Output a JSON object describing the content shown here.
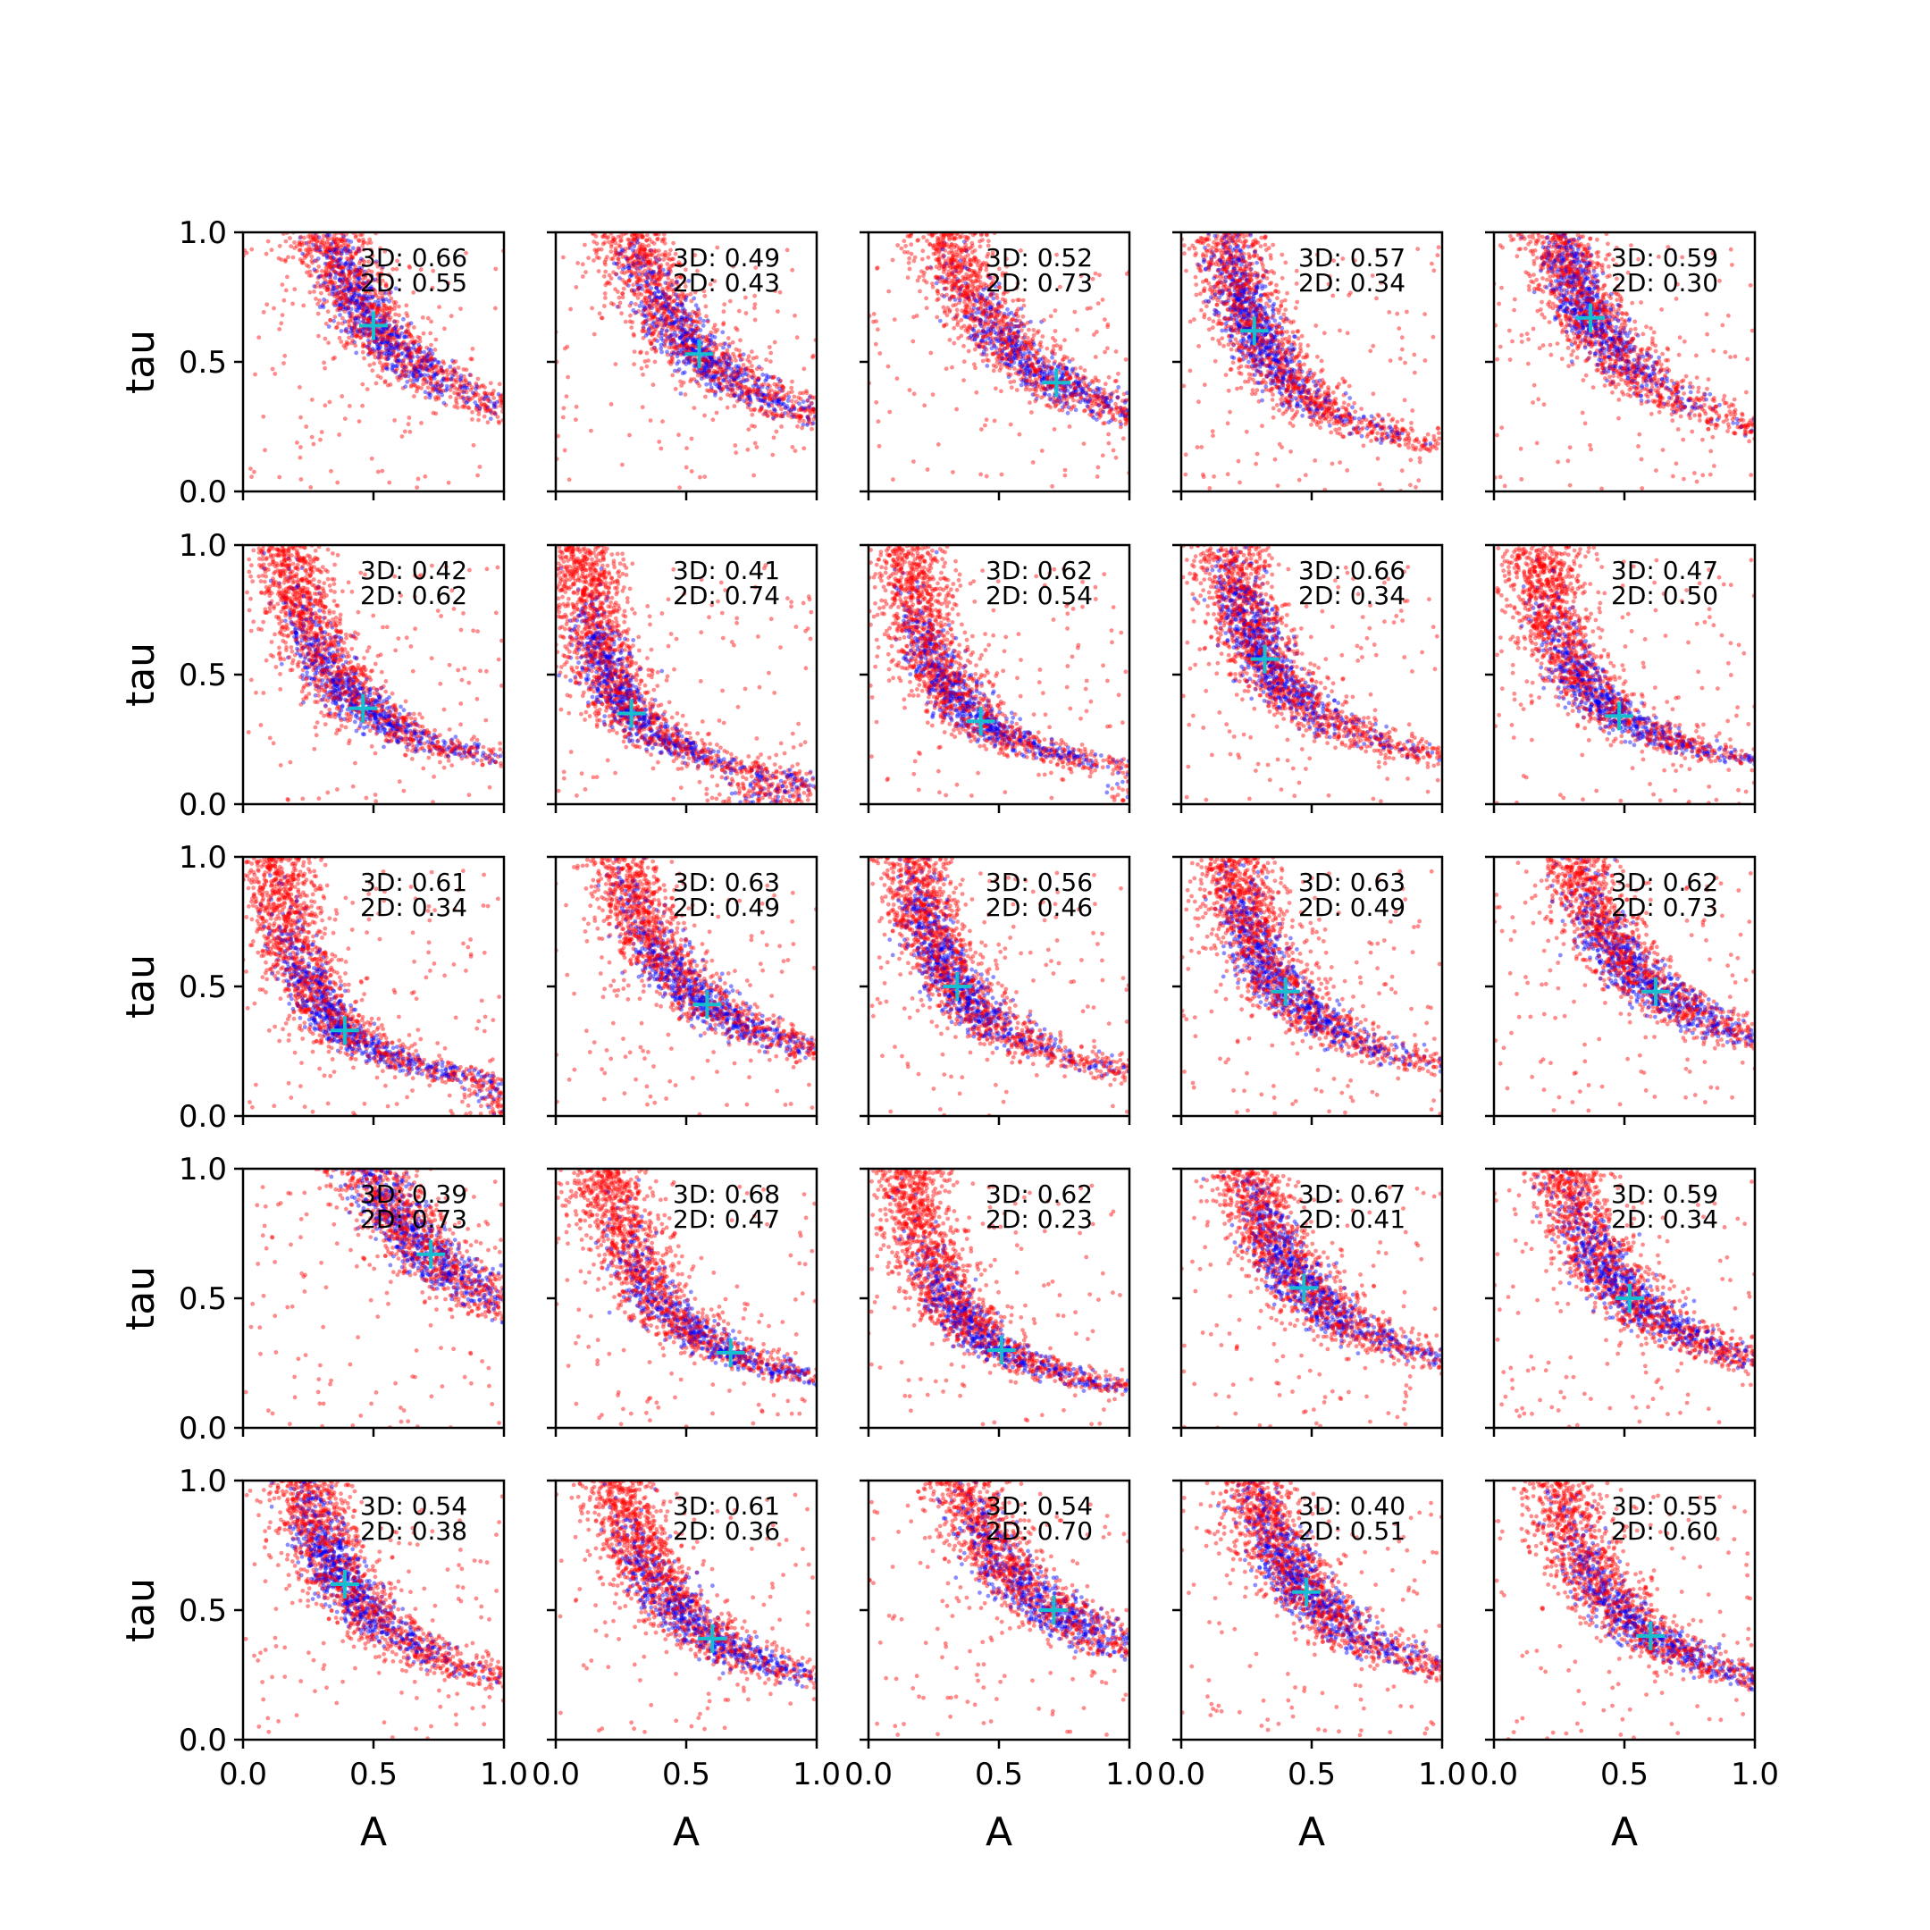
{
  "chart_data": {
    "type": "scatter",
    "layout": "5x5 grid of scatter subplots",
    "xlabel": "A",
    "ylabel": "tau",
    "xlim": [
      0,
      1
    ],
    "ylim": [
      0,
      1
    ],
    "xticks": [
      "0.0",
      "0.5",
      "1.0"
    ],
    "yticks": [
      "0.0",
      "0.5",
      "1.0"
    ],
    "grid": false,
    "legend": "none",
    "series": [
      {
        "color": "#ff0000",
        "marker": "dot",
        "alpha": 0.45
      },
      {
        "color": "#0000ff",
        "marker": "dot",
        "alpha": 0.45
      },
      {
        "color": "#17becf",
        "marker": "plus"
      }
    ],
    "panels": [
      {
        "row": 0,
        "col": 0,
        "marker": {
          "A": 0.5,
          "tau": 0.64
        },
        "text3d": "3D: 0.66",
        "text2d": "2D: 0.55"
      },
      {
        "row": 0,
        "col": 1,
        "marker": {
          "A": 0.55,
          "tau": 0.53
        },
        "text3d": "3D: 0.49",
        "text2d": "2D: 0.43"
      },
      {
        "row": 0,
        "col": 2,
        "marker": {
          "A": 0.72,
          "tau": 0.42
        },
        "text3d": "3D: 0.52",
        "text2d": "2D: 0.73"
      },
      {
        "row": 0,
        "col": 3,
        "marker": {
          "A": 0.28,
          "tau": 0.62
        },
        "text3d": "3D: 0.57",
        "text2d": "2D: 0.34"
      },
      {
        "row": 0,
        "col": 4,
        "marker": {
          "A": 0.37,
          "tau": 0.67
        },
        "text3d": "3D: 0.59",
        "text2d": "2D: 0.30"
      },
      {
        "row": 1,
        "col": 0,
        "marker": {
          "A": 0.46,
          "tau": 0.37
        },
        "text3d": "3D: 0.42",
        "text2d": "2D: 0.62"
      },
      {
        "row": 1,
        "col": 1,
        "marker": {
          "A": 0.29,
          "tau": 0.35
        },
        "text3d": "3D: 0.41",
        "text2d": "2D: 0.74"
      },
      {
        "row": 1,
        "col": 2,
        "marker": {
          "A": 0.43,
          "tau": 0.32
        },
        "text3d": "3D: 0.62",
        "text2d": "2D: 0.54"
      },
      {
        "row": 1,
        "col": 3,
        "marker": {
          "A": 0.32,
          "tau": 0.56
        },
        "text3d": "3D: 0.66",
        "text2d": "2D: 0.34"
      },
      {
        "row": 1,
        "col": 4,
        "marker": {
          "A": 0.48,
          "tau": 0.34
        },
        "text3d": "3D: 0.47",
        "text2d": "2D: 0.50"
      },
      {
        "row": 2,
        "col": 0,
        "marker": {
          "A": 0.39,
          "tau": 0.33
        },
        "text3d": "3D: 0.61",
        "text2d": "2D: 0.34"
      },
      {
        "row": 2,
        "col": 1,
        "marker": {
          "A": 0.58,
          "tau": 0.43
        },
        "text3d": "3D: 0.63",
        "text2d": "2D: 0.49"
      },
      {
        "row": 2,
        "col": 2,
        "marker": {
          "A": 0.34,
          "tau": 0.5
        },
        "text3d": "3D: 0.56",
        "text2d": "2D: 0.46"
      },
      {
        "row": 2,
        "col": 3,
        "marker": {
          "A": 0.4,
          "tau": 0.48
        },
        "text3d": "3D: 0.63",
        "text2d": "2D: 0.49"
      },
      {
        "row": 2,
        "col": 4,
        "marker": {
          "A": 0.62,
          "tau": 0.48
        },
        "text3d": "3D: 0.62",
        "text2d": "2D: 0.73"
      },
      {
        "row": 3,
        "col": 0,
        "marker": {
          "A": 0.72,
          "tau": 0.67
        },
        "text3d": "3D: 0.39",
        "text2d": "2D: 0.73"
      },
      {
        "row": 3,
        "col": 1,
        "marker": {
          "A": 0.67,
          "tau": 0.29
        },
        "text3d": "3D: 0.68",
        "text2d": "2D: 0.47"
      },
      {
        "row": 3,
        "col": 2,
        "marker": {
          "A": 0.51,
          "tau": 0.3
        },
        "text3d": "3D: 0.62",
        "text2d": "2D: 0.23"
      },
      {
        "row": 3,
        "col": 3,
        "marker": {
          "A": 0.47,
          "tau": 0.54
        },
        "text3d": "3D: 0.67",
        "text2d": "2D: 0.41"
      },
      {
        "row": 3,
        "col": 4,
        "marker": {
          "A": 0.52,
          "tau": 0.5
        },
        "text3d": "3D: 0.59",
        "text2d": "2D: 0.34"
      },
      {
        "row": 4,
        "col": 0,
        "marker": {
          "A": 0.39,
          "tau": 0.6
        },
        "text3d": "3D: 0.54",
        "text2d": "2D: 0.38"
      },
      {
        "row": 4,
        "col": 1,
        "marker": {
          "A": 0.6,
          "tau": 0.39
        },
        "text3d": "3D: 0.61",
        "text2d": "2D: 0.36"
      },
      {
        "row": 4,
        "col": 2,
        "marker": {
          "A": 0.71,
          "tau": 0.5
        },
        "text3d": "3D: 0.54",
        "text2d": "2D: 0.70"
      },
      {
        "row": 4,
        "col": 3,
        "marker": {
          "A": 0.48,
          "tau": 0.57
        },
        "text3d": "3D: 0.40",
        "text2d": "2D: 0.51"
      },
      {
        "row": 4,
        "col": 4,
        "marker": {
          "A": 0.6,
          "tau": 0.4
        },
        "text3d": "3D: 0.55",
        "text2d": "2D: 0.60"
      }
    ]
  }
}
